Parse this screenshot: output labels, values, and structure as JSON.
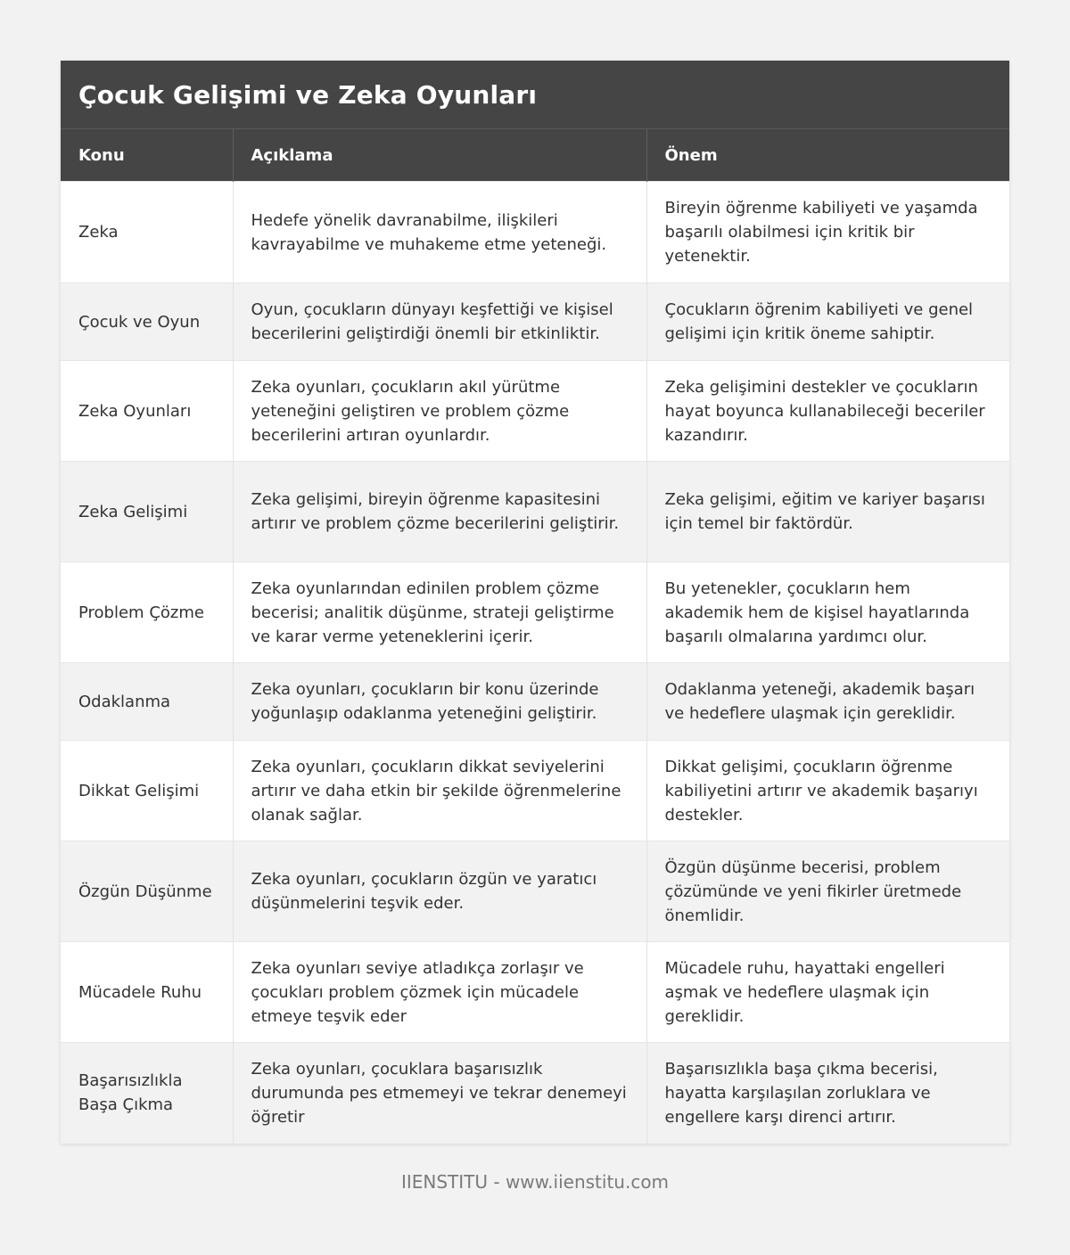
{
  "title": "Çocuk Gelişimi ve Zeka Oyunları",
  "columns": [
    "Konu",
    "Açıklama",
    "Önem"
  ],
  "rows": [
    {
      "konu": "Zeka",
      "aciklama": "Hedefe yönelik davranabilme, ilişkileri kavrayabilme ve muhakeme etme yeteneği.",
      "onem": "Bireyin öğrenme kabiliyeti ve yaşamda başarılı olabilmesi için kritik bir yetenektir."
    },
    {
      "konu": "Çocuk ve Oyun",
      "aciklama": "Oyun, çocukların dünyayı keşfettiği ve kişisel becerilerini geliştirdiği önemli bir etkinliktir.",
      "onem": "Çocukların öğrenim kabiliyeti ve genel gelişimi için kritik öneme sahiptir."
    },
    {
      "konu": "Zeka Oyunları",
      "aciklama": "Zeka oyunları, çocukların akıl yürütme yeteneğini geliştiren ve problem çözme becerilerini artıran oyunlardır.",
      "onem": "Zeka gelişimini destekler ve çocukların hayat boyunca kullanabileceği beceriler kazandırır."
    },
    {
      "konu": "Zeka Gelişimi",
      "aciklama": "Zeka gelişimi, bireyin öğrenme kapasitesini artırır ve problem çözme becerilerini geliştirir.",
      "onem": "Zeka gelişimi, eğitim ve kariyer başarısı için temel bir faktördür."
    },
    {
      "konu": "Problem Çözme",
      "aciklama": "Zeka oyunlarından edinilen problem çözme becerisi; analitik düşünme, strateji geliştirme ve karar verme yeteneklerini içerir.",
      "onem": "Bu yetenekler, çocukların hem akademik hem de kişisel hayatlarında başarılı olmalarına yardımcı olur."
    },
    {
      "konu": "Odaklanma",
      "aciklama": "Zeka oyunları, çocukların bir konu üzerinde yoğunlaşıp odaklanma yeteneğini geliştirir.",
      "onem": "Odaklanma yeteneği, akademik başarı ve hedeflere ulaşmak için gereklidir."
    },
    {
      "konu": "Dikkat Gelişimi",
      "aciklama": "Zeka oyunları, çocukların dikkat seviyelerini artırır ve daha etkin bir şekilde öğrenmelerine olanak sağlar.",
      "onem": "Dikkat gelişimi, çocukların öğrenme kabiliyetini artırır ve akademik başarıyı destekler."
    },
    {
      "konu": "Özgün Düşünme",
      "aciklama": "Zeka oyunları, çocukların özgün ve yaratıcı düşünmelerini teşvik eder.",
      "onem": "Özgün düşünme becerisi, problem çözümünde ve yeni fikirler üretmede önemlidir."
    },
    {
      "konu": "Mücadele Ruhu",
      "aciklama": "Zeka oyunları seviye atladıkça zorlaşır ve çocukları problem çözmek için mücadele etmeye teşvik eder",
      "onem": "Mücadele ruhu, hayattaki engelleri aşmak ve hedeflere ulaşmak için gereklidir."
    },
    {
      "konu": "Başarısızlıkla Başa Çıkma",
      "aciklama": "Zeka oyunları, çocuklara başarısızlık durumunda pes etmemeyi ve tekrar denemeyi öğretir",
      "onem": "Başarısızlıkla başa çıkma becerisi, hayatta karşılaşılan zorluklara ve engellere karşı direnci artırır."
    }
  ],
  "footer": "IIENSTITU - www.iienstitu.com"
}
